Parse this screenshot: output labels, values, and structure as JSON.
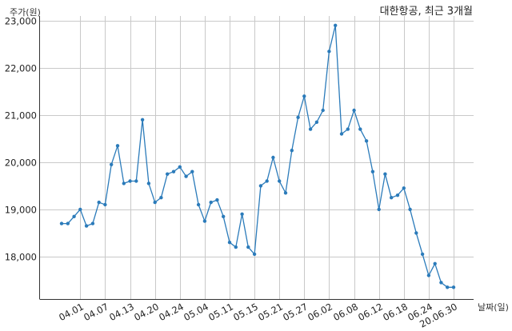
{
  "chart_data": {
    "type": "line",
    "title": "대한항공, 최근 3개월",
    "ylabel": "주가(원)",
    "xlabel": "날짜(일)",
    "ylim": [
      17100,
      23100
    ],
    "yticks": [
      18000,
      19000,
      20000,
      21000,
      22000,
      23000
    ],
    "ytick_labels": [
      "18,000",
      "19,000",
      "20,000",
      "21,000",
      "22,000",
      "23,000"
    ],
    "grid": true,
    "color": "#2b7bba",
    "x": [
      "03.27",
      "03.30",
      "03.31",
      "04.01",
      "04.02",
      "04.03",
      "04.06",
      "04.07",
      "04.08",
      "04.09",
      "04.10",
      "04.13",
      "04.14",
      "04.16",
      "04.17",
      "04.20",
      "04.21",
      "04.22",
      "04.23",
      "04.24",
      "04.27",
      "04.28",
      "04.29",
      "05.04",
      "05.06",
      "05.07",
      "05.08",
      "05.11",
      "05.12",
      "05.13",
      "05.14",
      "05.15",
      "05.18",
      "05.19",
      "05.20",
      "05.21",
      "05.22",
      "05.25",
      "05.26",
      "05.27",
      "05.28",
      "05.29",
      "06.01",
      "06.02",
      "06.03",
      "06.04",
      "06.05",
      "06.08",
      "06.09",
      "06.10",
      "06.11",
      "06.12",
      "06.15",
      "06.16",
      "06.17",
      "06.18",
      "06.19",
      "06.22",
      "06.23",
      "06.24",
      "06.25",
      "06.26",
      "06.29",
      "06.30"
    ],
    "values": [
      18700,
      18700,
      18850,
      19000,
      18650,
      18700,
      19150,
      19100,
      19950,
      20350,
      19550,
      19600,
      19600,
      20900,
      19550,
      19150,
      19250,
      19750,
      19800,
      19900,
      19700,
      19800,
      19100,
      18750,
      19150,
      19200,
      18850,
      18300,
      18200,
      18900,
      18200,
      18050,
      19500,
      19600,
      20100,
      19600,
      19350,
      20250,
      20950,
      21400,
      20700,
      20850,
      21100,
      22350,
      22900,
      20600,
      20700,
      21100,
      20700,
      20450,
      19800,
      19000,
      19750,
      19250,
      19300,
      19450,
      19000,
      18500,
      18050,
      17600,
      17850,
      17450,
      17350,
      17350
    ],
    "xtick_labels": [
      "04.01",
      "04.07",
      "04.13",
      "04.20",
      "04.24",
      "05.04",
      "05.11",
      "05.15",
      "05.21",
      "05.27",
      "06.02",
      "06.08",
      "06.12",
      "06.18",
      "06.24",
      "20.06.30"
    ],
    "xtick_index": [
      3,
      7,
      11,
      15,
      19,
      23,
      27,
      31,
      35,
      39,
      43,
      47,
      51,
      55,
      59,
      63
    ]
  }
}
